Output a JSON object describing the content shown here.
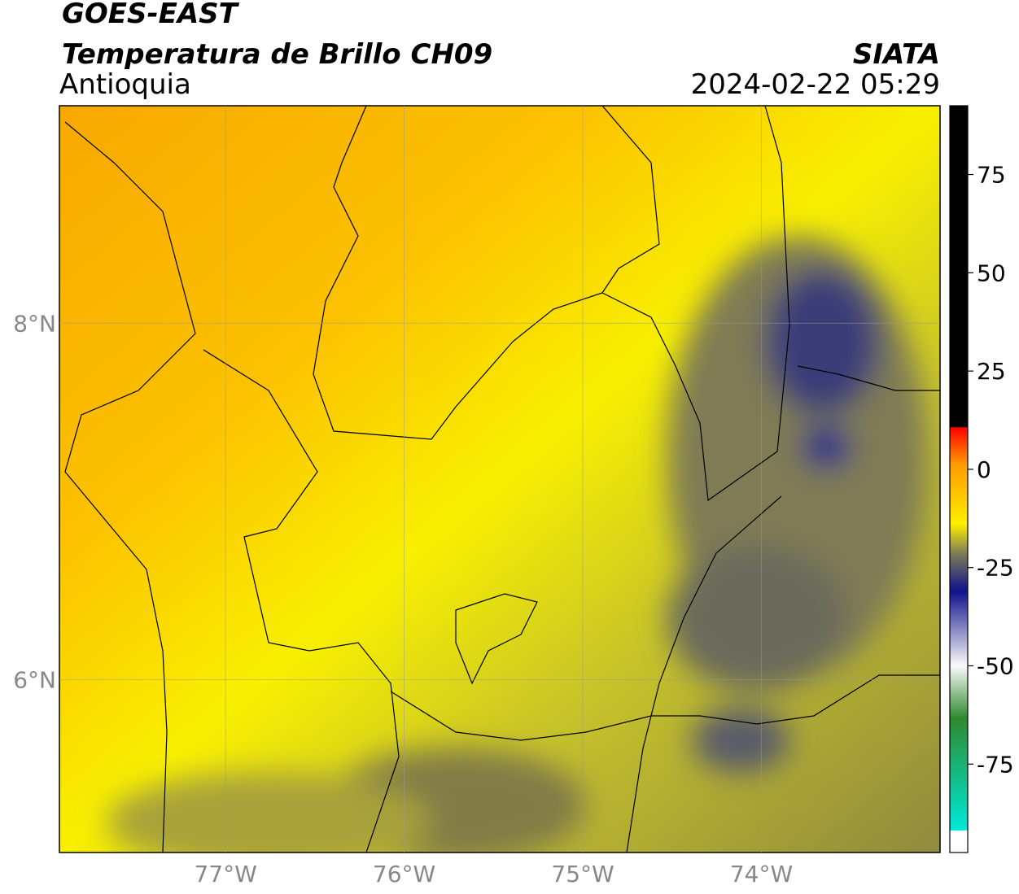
{
  "header": {
    "title": "GOES-EAST",
    "subtitle": "Temperatura de Brillo CH09",
    "region": "Antioquia",
    "source": "SIATA",
    "datetime": "2024-02-22 05:29"
  },
  "map": {
    "xlim": [
      -77.93,
      -73.0
    ],
    "ylim": [
      5.03,
      9.22
    ],
    "xticks": [
      {
        "value": -77,
        "label": "77°W"
      },
      {
        "value": -76,
        "label": "76°W"
      },
      {
        "value": -75,
        "label": "75°W"
      },
      {
        "value": -74,
        "label": "74°W"
      }
    ],
    "yticks": [
      {
        "value": 8,
        "label": "8°N"
      },
      {
        "value": 6,
        "label": "6°N"
      }
    ]
  },
  "colorbar": {
    "range": [
      -97.5,
      92.5
    ],
    "ticks": [
      75,
      50,
      25,
      0,
      -25,
      -50,
      -75
    ]
  }
}
